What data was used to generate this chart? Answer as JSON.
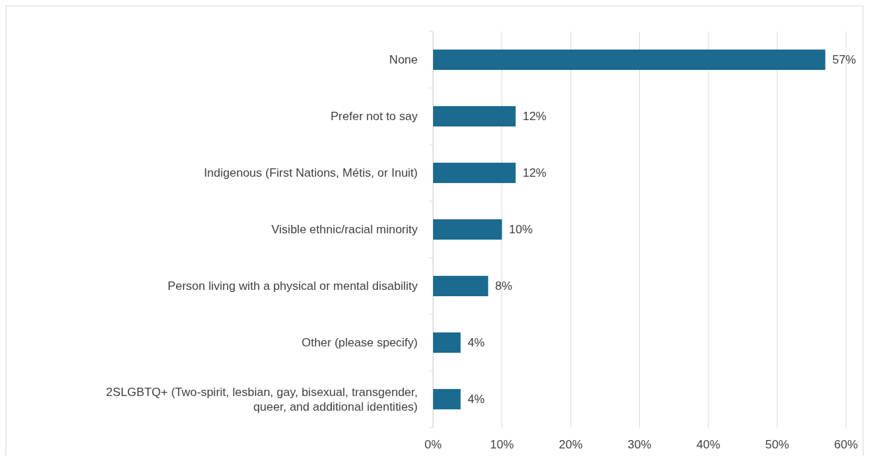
{
  "chart_data": {
    "type": "bar",
    "orientation": "horizontal",
    "categories": [
      "None",
      "Prefer not to say",
      "Indigenous (First Nations, Métis, or Inuit)",
      "Visible ethnic/racial minority",
      "Person living with a physical or mental disability",
      "Other (please specify)",
      "2SLGBTQ+ (Two-spirit, lesbian, gay, bisexual, transgender, queer, and additional identities)"
    ],
    "values": [
      57,
      12,
      12,
      10,
      8,
      4,
      4
    ],
    "color": "#1b6a8f",
    "xlim": [
      0,
      60
    ],
    "xticks": [
      {
        "value": 0,
        "label": "0%"
      },
      {
        "value": 10,
        "label": "10%"
      },
      {
        "value": 20,
        "label": "20%"
      },
      {
        "value": 30,
        "label": "30%"
      },
      {
        "value": 40,
        "label": "40%"
      },
      {
        "value": 50,
        "label": "50%"
      },
      {
        "value": 60,
        "label": "60%"
      }
    ],
    "grid": "x",
    "value_labels": [
      "57%",
      "12%",
      "12%",
      "10%",
      "8%",
      "4%",
      "4%"
    ]
  }
}
